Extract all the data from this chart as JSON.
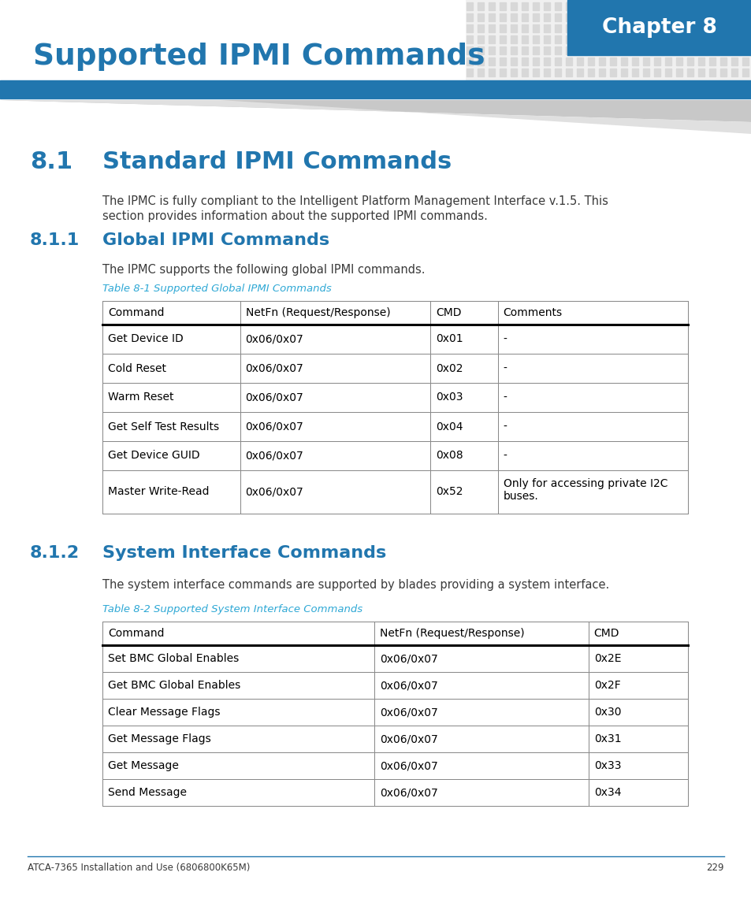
{
  "page_bg": "#ffffff",
  "chapter_box_bg": "#2176ae",
  "chapter_text": "Chapter 8",
  "page_title": "Supported IPMI Commands",
  "page_title_color": "#2176ae",
  "blue_bar_color": "#2176ae",
  "section_81_num": "8.1",
  "section_81_title": "Standard IPMI Commands",
  "section_81_color": "#2176ae",
  "section_81_body1": "The IPMC is fully compliant to the Intelligent Platform Management Interface v.1.5. This",
  "section_81_body2": "section provides information about the supported IPMI commands.",
  "section_811_num": "8.1.1",
  "section_811_title": "Global IPMI Commands",
  "section_811_color": "#2176ae",
  "section_811_body": "The IPMC supports the following global IPMI commands.",
  "table1_title": "Table 8-1 Supported Global IPMI Commands",
  "table1_title_color": "#2ea8d5",
  "table1_headers": [
    "Command",
    "NetFn (Request/Response)",
    "CMD",
    "Comments"
  ],
  "table1_rows": [
    [
      "Get Device ID",
      "0x06/0x07",
      "0x01",
      "-"
    ],
    [
      "Cold Reset",
      "0x06/0x07",
      "0x02",
      "-"
    ],
    [
      "Warm Reset",
      "0x06/0x07",
      "0x03",
      "-"
    ],
    [
      "Get Self Test Results",
      "0x06/0x07",
      "0x04",
      "-"
    ],
    [
      "Get Device GUID",
      "0x06/0x07",
      "0x08",
      "-"
    ],
    [
      "Master Write-Read",
      "0x06/0x07",
      "0x52",
      "Only for accessing private I2C\nbuses."
    ]
  ],
  "section_812_num": "8.1.2",
  "section_812_title": "System Interface Commands",
  "section_812_color": "#2176ae",
  "section_812_body": "The system interface commands are supported by blades providing a system interface.",
  "table2_title": "Table 8-2 Supported System Interface Commands",
  "table2_title_color": "#2ea8d5",
  "table2_headers": [
    "Command",
    "NetFn (Request/Response)",
    "CMD"
  ],
  "table2_rows": [
    [
      "Set BMC Global Enables",
      "0x06/0x07",
      "0x2E"
    ],
    [
      "Get BMC Global Enables",
      "0x06/0x07",
      "0x2F"
    ],
    [
      "Clear Message Flags",
      "0x06/0x07",
      "0x30"
    ],
    [
      "Get Message Flags",
      "0x06/0x07",
      "0x31"
    ],
    [
      "Get Message",
      "0x06/0x07",
      "0x33"
    ],
    [
      "Send Message",
      "0x06/0x07",
      "0x34"
    ]
  ],
  "footer_text": "ATCA-7365 Installation and Use (6806800K65M)",
  "footer_page": "229",
  "footer_line_color": "#2176ae",
  "body_text_color": "#3a3a3a",
  "table_border_color": "#888888"
}
